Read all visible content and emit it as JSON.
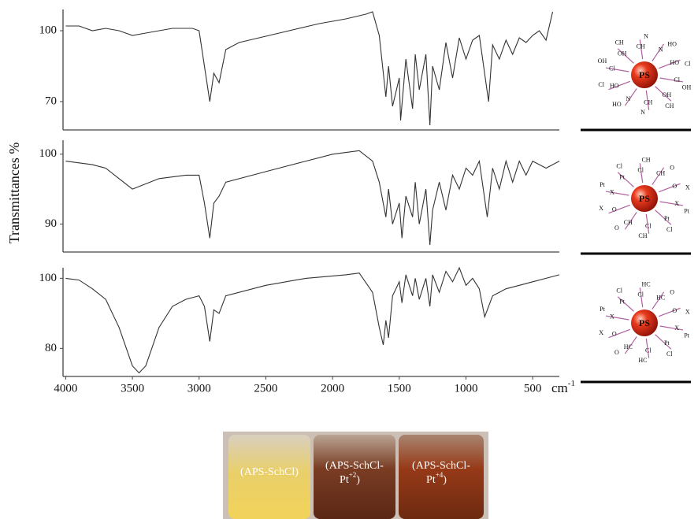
{
  "chart_data": [
    {
      "type": "line",
      "color": "#333333",
      "xlim": [
        4020,
        300
      ],
      "ylim": [
        58,
        109
      ],
      "yticks": [
        100,
        70
      ],
      "x": [
        4000,
        3900,
        3800,
        3700,
        3600,
        3500,
        3400,
        3200,
        3050,
        3000,
        2960,
        2920,
        2890,
        2850,
        2800,
        2700,
        2400,
        2100,
        1900,
        1750,
        1700,
        1650,
        1600,
        1580,
        1550,
        1500,
        1490,
        1450,
        1400,
        1380,
        1350,
        1300,
        1270,
        1250,
        1200,
        1150,
        1100,
        1050,
        1000,
        950,
        900,
        830,
        800,
        750,
        700,
        650,
        600,
        550,
        500,
        450,
        400,
        350
      ],
      "values": [
        102,
        102,
        100,
        101,
        100,
        98,
        99,
        101,
        101,
        100,
        85,
        70,
        82,
        78,
        92,
        95,
        99,
        103,
        105,
        107,
        108,
        98,
        72,
        85,
        68,
        80,
        62,
        88,
        67,
        90,
        75,
        90,
        60,
        85,
        75,
        95,
        80,
        97,
        88,
        96,
        98,
        70,
        94,
        88,
        96,
        90,
        97,
        95,
        98,
        100,
        96,
        108
      ]
    },
    {
      "type": "line",
      "color": "#333333",
      "xlim": [
        4020,
        300
      ],
      "ylim": [
        86,
        102
      ],
      "yticks": [
        100,
        90
      ],
      "x": [
        4000,
        3800,
        3700,
        3600,
        3500,
        3300,
        3100,
        3000,
        2960,
        2920,
        2890,
        2850,
        2800,
        2500,
        2200,
        2000,
        1800,
        1700,
        1650,
        1600,
        1580,
        1550,
        1500,
        1480,
        1450,
        1400,
        1380,
        1350,
        1300,
        1270,
        1250,
        1200,
        1150,
        1100,
        1050,
        1000,
        950,
        900,
        840,
        800,
        750,
        700,
        650,
        600,
        550,
        500,
        400,
        300
      ],
      "values": [
        99,
        98.5,
        98,
        96.5,
        95,
        96.5,
        97,
        97,
        93,
        88,
        93,
        94,
        96,
        97.5,
        99,
        100,
        100.5,
        99,
        96,
        91,
        95,
        90,
        93,
        88,
        94,
        91,
        96,
        90,
        95,
        87,
        92,
        96,
        92,
        97,
        95,
        98,
        97,
        99,
        91,
        98,
        95,
        99,
        96,
        99,
        97,
        99,
        98,
        99
      ]
    },
    {
      "type": "line",
      "color": "#333333",
      "xlim": [
        4020,
        300
      ],
      "ylim": [
        72,
        103
      ],
      "yticks": [
        100,
        80
      ],
      "xticks": [
        4000,
        3500,
        3000,
        2500,
        2000,
        1500,
        1000,
        500
      ],
      "xlabel": {
        "text": "cm",
        "sup": "-1"
      },
      "x": [
        4000,
        3900,
        3800,
        3700,
        3600,
        3500,
        3450,
        3400,
        3300,
        3200,
        3100,
        3000,
        2960,
        2920,
        2890,
        2850,
        2800,
        2500,
        2200,
        1900,
        1800,
        1700,
        1650,
        1620,
        1600,
        1580,
        1550,
        1500,
        1480,
        1450,
        1400,
        1380,
        1350,
        1300,
        1270,
        1250,
        1200,
        1150,
        1100,
        1050,
        1000,
        950,
        900,
        860,
        800,
        700,
        600,
        500,
        400,
        300
      ],
      "values": [
        100,
        99.5,
        97,
        94,
        86,
        75,
        73,
        75,
        86,
        92,
        94,
        95,
        92,
        82,
        91,
        90,
        95,
        98,
        100,
        101,
        101.5,
        96,
        86,
        81,
        88,
        83,
        95,
        99,
        93,
        101,
        95,
        100,
        94,
        100,
        92,
        101,
        96,
        102,
        99,
        103,
        98,
        100,
        97,
        89,
        95,
        97,
        98,
        99,
        100,
        101
      ]
    }
  ],
  "ylabel": "Transmittances %",
  "structures": [
    {
      "center": "PS",
      "labels": [
        "Cl",
        "OH",
        "CH",
        "N",
        "HO"
      ]
    },
    {
      "center": "PS",
      "labels": [
        "X",
        "Pt",
        "Cl",
        "CH",
        "O"
      ]
    },
    {
      "center": "PS",
      "labels": [
        "X",
        "Pt",
        "Cl",
        "HC",
        "O"
      ]
    }
  ],
  "vials": [
    {
      "text": "(APS-SchCl)"
    },
    {
      "text": "(APS-SchCl-",
      "line2": "Pt",
      "sup": "+2",
      "end": ")"
    },
    {
      "text": "(APS-SchCl-",
      "line2": "Pt",
      "sup": "+4",
      "end": ")"
    }
  ]
}
